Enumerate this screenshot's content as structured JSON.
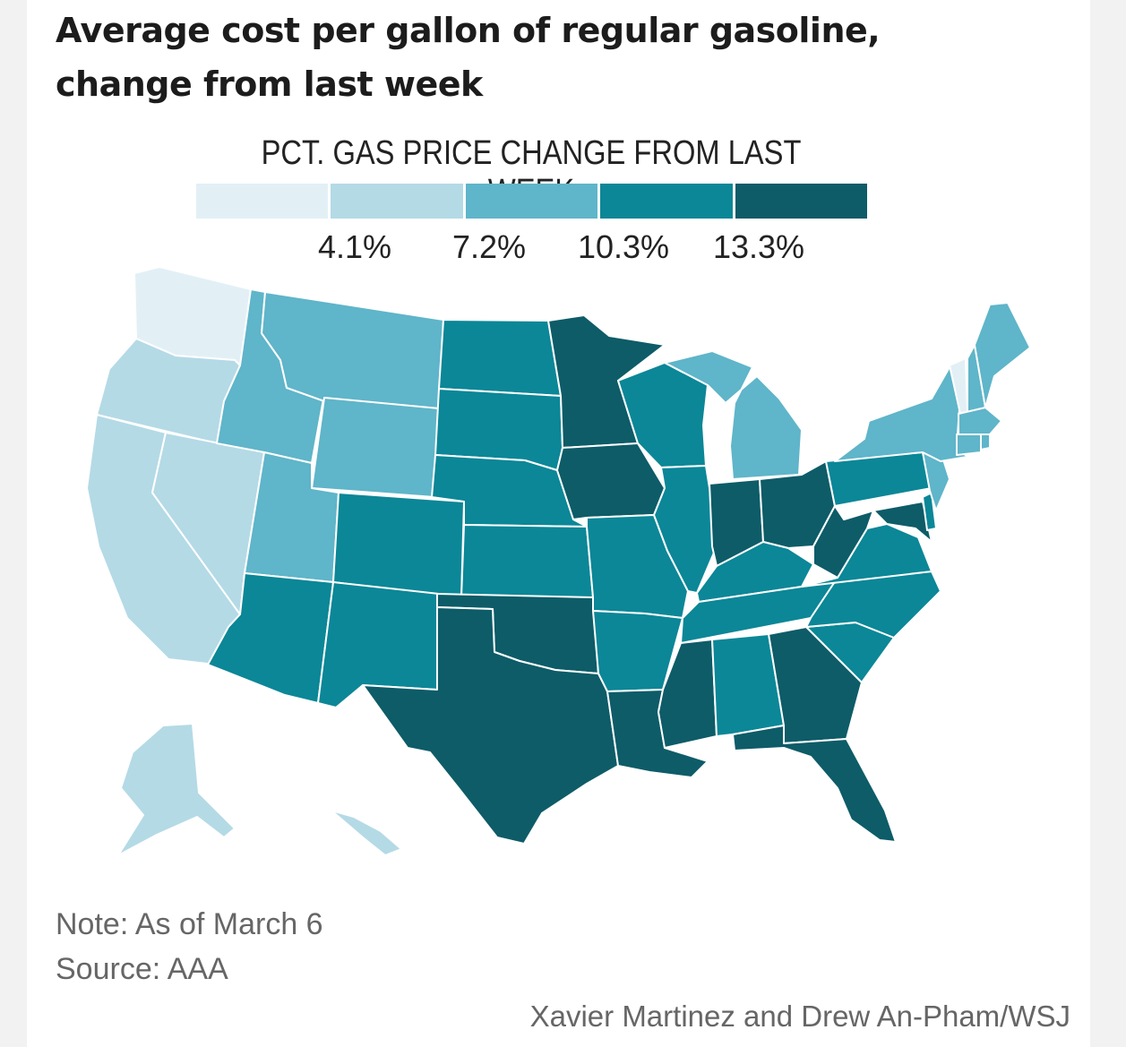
{
  "title": "Average cost per gallon of regular gasoline, change from last week",
  "legend": {
    "title": "PCT. GAS PRICE CHANGE FROM LAST WEEK",
    "ticks": [
      "4.1%",
      "7.2%",
      "10.3%",
      "13.3%"
    ],
    "bins": [
      {
        "label": "under 4.1%",
        "color": "#e2f0f6"
      },
      {
        "label": "4.1% - 7.2%",
        "color": "#b4dae6"
      },
      {
        "label": "7.2% - 10.3%",
        "color": "#5fb5c9"
      },
      {
        "label": "10.3% - 13.3%",
        "color": "#0b8797"
      },
      {
        "label": "13.3% and above",
        "color": "#0d5c68"
      }
    ]
  },
  "colors": {
    "bin0": "#e2f0f6",
    "bin1": "#b4dae6",
    "bin2": "#5fb5c9",
    "bin3": "#0b8797",
    "bin4": "#0d5c68",
    "border": "#ffffff",
    "background": "#ffffff"
  },
  "map_data": {
    "type": "choropleth",
    "metric": "Pct. gas price change from last week",
    "state_bins": {
      "WA": 0,
      "OR": 1,
      "CA": 1,
      "NV": 1,
      "AK": 1,
      "HI": 1,
      "VT": 0,
      "ID": 2,
      "MT": 2,
      "WY": 2,
      "UT": 2,
      "MI": 2,
      "NY": 2,
      "ME": 2,
      "NH": 2,
      "MA": 2,
      "CT": 2,
      "RI": 2,
      "NJ": 2,
      "ND": 3,
      "SD": 3,
      "NE": 3,
      "KS": 3,
      "CO": 3,
      "AZ": 3,
      "NM": 3,
      "MO": 3,
      "AR": 3,
      "IL": 3,
      "WI": 3,
      "KY": 3,
      "TN": 3,
      "AL": 3,
      "VA": 3,
      "NC": 3,
      "SC": 3,
      "PA": 3,
      "DE": 3,
      "MN": 4,
      "IA": 4,
      "OK": 4,
      "TX": 4,
      "LA": 4,
      "MS": 4,
      "GA": 4,
      "FL": 4,
      "IN": 4,
      "OH": 4,
      "WV": 4,
      "MD": 4
    }
  },
  "notes": {
    "note": "Note: As of March 6",
    "source": "Source: AAA",
    "credit": "Xavier Martinez and Drew An-Pham/WSJ"
  }
}
